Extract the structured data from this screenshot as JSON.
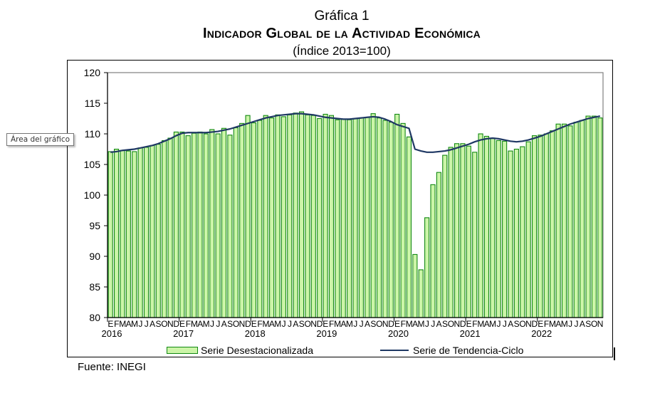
{
  "title": {
    "line1": "Gráfica 1",
    "line2": "Indicador Global de la Actividad Económica",
    "line3": "(Índice 2013=100)"
  },
  "tooltip": "Área del gráfico",
  "source": "Fuente: INEGI",
  "colors": {
    "bar_fill": "#ccf5a8",
    "bar_stroke": "#118811",
    "trend_line": "#1f3864",
    "plot_border": "#808080"
  },
  "chart_data": {
    "type": "bar",
    "title": "Indicador Global de la Actividad Económica",
    "subtitle": "(Índice 2013=100)",
    "xlabel": "",
    "ylabel": "",
    "ylim": [
      80,
      120
    ],
    "yticks": [
      "80",
      "85",
      "90",
      "95",
      "100",
      "105",
      "110",
      "115",
      "120"
    ],
    "month_labels": [
      "E",
      "F",
      "M",
      "A",
      "M",
      "J",
      "J",
      "A",
      "S",
      "O",
      "N",
      "D"
    ],
    "year_labels": [
      "2016",
      "2017",
      "2018",
      "2019",
      "2020",
      "2021",
      "2022"
    ],
    "start": "2016-01",
    "end": "2022-11",
    "grid": false,
    "legend_position": "bottom",
    "series": [
      {
        "name": "Serie Desestacionalizada",
        "type": "bar",
        "values": [
          107.1,
          107.5,
          107.3,
          107.2,
          107.1,
          107.7,
          107.8,
          108.1,
          108.3,
          108.9,
          109.3,
          110.3,
          110.3,
          109.7,
          110.1,
          110.3,
          110.0,
          110.7,
          110.0,
          110.9,
          109.8,
          111.0,
          111.7,
          113.0,
          111.8,
          112.2,
          113.0,
          112.6,
          113.1,
          112.8,
          113.1,
          113.4,
          113.6,
          113.1,
          113.0,
          112.5,
          113.2,
          113.0,
          112.3,
          112.4,
          112.3,
          112.5,
          112.6,
          112.7,
          113.3,
          112.6,
          112.2,
          111.9,
          113.2,
          111.7,
          109.5,
          90.3,
          87.8,
          96.3,
          101.7,
          103.7,
          106.5,
          107.8,
          108.4,
          108.4,
          108.0,
          107.0,
          110.0,
          109.6,
          109.3,
          108.9,
          108.8,
          107.2,
          107.5,
          107.9,
          108.7,
          109.7,
          109.8,
          110.0,
          110.5,
          111.6,
          111.6,
          111.3,
          111.9,
          112.2,
          112.9,
          112.9,
          112.6
        ]
      },
      {
        "name": "Serie de Tendencia-Ciclo",
        "type": "line",
        "values": [
          107.0,
          107.1,
          107.3,
          107.4,
          107.5,
          107.7,
          107.9,
          108.1,
          108.4,
          108.8,
          109.2,
          109.7,
          110.1,
          110.2,
          110.2,
          110.2,
          110.2,
          110.3,
          110.4,
          110.6,
          110.8,
          111.1,
          111.4,
          111.7,
          112.0,
          112.3,
          112.6,
          112.8,
          113.0,
          113.1,
          113.2,
          113.3,
          113.3,
          113.2,
          113.1,
          112.9,
          112.7,
          112.6,
          112.5,
          112.4,
          112.4,
          112.5,
          112.6,
          112.7,
          112.8,
          112.7,
          112.4,
          112.0,
          111.5,
          111.2,
          110.9,
          107.5,
          107.2,
          107.0,
          107.0,
          107.1,
          107.2,
          107.4,
          107.7,
          108.0,
          108.3,
          108.7,
          109.0,
          109.2,
          109.3,
          109.2,
          109.0,
          108.8,
          108.7,
          108.8,
          109.0,
          109.3,
          109.6,
          110.0,
          110.4,
          110.8,
          111.2,
          111.6,
          111.9,
          112.2,
          112.5,
          112.7,
          112.9
        ]
      }
    ]
  }
}
